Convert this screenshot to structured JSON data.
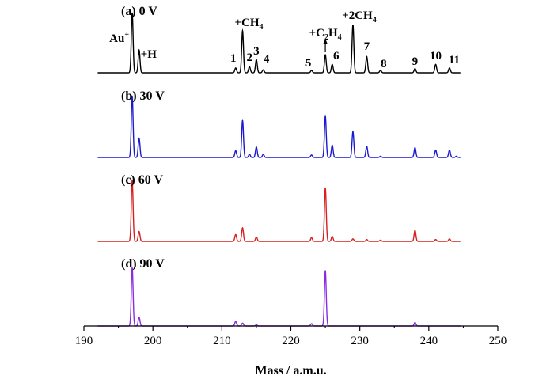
{
  "chart_data": {
    "type": "line",
    "xlabel": "Mass / a.m.u.",
    "ylabel": "",
    "xlim": [
      190,
      250
    ],
    "x_ticks": [
      "190",
      "200",
      "210",
      "220",
      "230",
      "240",
      "250"
    ],
    "grid": false,
    "series": [
      {
        "name": "(a) 0 V",
        "color": "#000000",
        "peaks": [
          {
            "x": 197,
            "y": 1.0
          },
          {
            "x": 198,
            "y": 0.38
          },
          {
            "x": 212,
            "y": 0.08
          },
          {
            "x": 213,
            "y": 0.7
          },
          {
            "x": 214,
            "y": 0.1
          },
          {
            "x": 215,
            "y": 0.22
          },
          {
            "x": 216,
            "y": 0.05
          },
          {
            "x": 223,
            "y": 0.04
          },
          {
            "x": 225,
            "y": 0.3
          },
          {
            "x": 226,
            "y": 0.14
          },
          {
            "x": 229,
            "y": 0.8
          },
          {
            "x": 231,
            "y": 0.27
          },
          {
            "x": 233,
            "y": 0.04
          },
          {
            "x": 238,
            "y": 0.07
          },
          {
            "x": 241,
            "y": 0.14
          },
          {
            "x": 243,
            "y": 0.08
          }
        ]
      },
      {
        "name": "(b) 30 V",
        "color": "#1a1acc",
        "peaks": [
          {
            "x": 197,
            "y": 1.0
          },
          {
            "x": 198,
            "y": 0.31
          },
          {
            "x": 212,
            "y": 0.11
          },
          {
            "x": 213,
            "y": 0.6
          },
          {
            "x": 214,
            "y": 0.05
          },
          {
            "x": 215,
            "y": 0.17
          },
          {
            "x": 216,
            "y": 0.05
          },
          {
            "x": 223,
            "y": 0.04
          },
          {
            "x": 225,
            "y": 0.67
          },
          {
            "x": 226,
            "y": 0.2
          },
          {
            "x": 229,
            "y": 0.42
          },
          {
            "x": 231,
            "y": 0.18
          },
          {
            "x": 233,
            "y": 0.02
          },
          {
            "x": 238,
            "y": 0.16
          },
          {
            "x": 241,
            "y": 0.12
          },
          {
            "x": 243,
            "y": 0.12
          },
          {
            "x": 244,
            "y": 0.02
          }
        ]
      },
      {
        "name": "(c) 60 V",
        "color": "#d42020",
        "peaks": [
          {
            "x": 197,
            "y": 1.0
          },
          {
            "x": 198,
            "y": 0.16
          },
          {
            "x": 212,
            "y": 0.11
          },
          {
            "x": 213,
            "y": 0.22
          },
          {
            "x": 215,
            "y": 0.07
          },
          {
            "x": 223,
            "y": 0.06
          },
          {
            "x": 225,
            "y": 0.87
          },
          {
            "x": 226,
            "y": 0.08
          },
          {
            "x": 229,
            "y": 0.04
          },
          {
            "x": 231,
            "y": 0.03
          },
          {
            "x": 233,
            "y": 0.02
          },
          {
            "x": 238,
            "y": 0.18
          },
          {
            "x": 241,
            "y": 0.03
          },
          {
            "x": 243,
            "y": 0.04
          }
        ]
      },
      {
        "name": "(d) 90 V",
        "color": "#8a2be2",
        "peaks": [
          {
            "x": 197,
            "y": 1.0
          },
          {
            "x": 198,
            "y": 0.15
          },
          {
            "x": 212,
            "y": 0.08
          },
          {
            "x": 213,
            "y": 0.05
          },
          {
            "x": 215,
            "y": 0.02
          },
          {
            "x": 223,
            "y": 0.04
          },
          {
            "x": 225,
            "y": 0.95
          },
          {
            "x": 238,
            "y": 0.06
          }
        ]
      }
    ],
    "ion_labels": [
      {
        "id": "au",
        "main": "Au",
        "sup": "+",
        "x": 197
      },
      {
        "id": "h",
        "main": "+H",
        "x": 198
      },
      {
        "id": "ch4",
        "main": "+CH",
        "sub": "4",
        "x": 213
      },
      {
        "id": "c2h4",
        "main": "+C",
        "sub": "2",
        "main2": "H",
        "sub2": "4",
        "x": 225
      },
      {
        "id": "2ch4",
        "main": "+2CH",
        "sub": "4",
        "x": 229
      }
    ],
    "peak_numbers": [
      {
        "text": "1",
        "x": 212
      },
      {
        "text": "2",
        "x": 214
      },
      {
        "text": "3",
        "x": 215
      },
      {
        "text": "4",
        "x": 216
      },
      {
        "text": "5",
        "x": 223
      },
      {
        "text": "6",
        "x": 226
      },
      {
        "text": "7",
        "x": 231
      },
      {
        "text": "8",
        "x": 233
      },
      {
        "text": "9",
        "x": 238
      },
      {
        "text": "10",
        "x": 241
      },
      {
        "text": "11",
        "x": 243
      }
    ]
  }
}
